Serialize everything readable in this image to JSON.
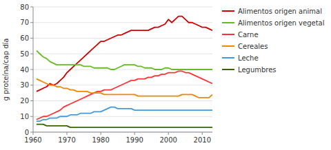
{
  "chart_data": {
    "type": "line",
    "x": [
      1961,
      1962,
      1963,
      1964,
      1965,
      1966,
      1967,
      1968,
      1969,
      1970,
      1971,
      1972,
      1973,
      1974,
      1975,
      1976,
      1977,
      1978,
      1979,
      1980,
      1981,
      1982,
      1983,
      1984,
      1985,
      1986,
      1987,
      1988,
      1989,
      1990,
      1991,
      1992,
      1993,
      1994,
      1995,
      1996,
      1997,
      1998,
      1999,
      2000,
      2001,
      2002,
      2003,
      2004,
      2005,
      2006,
      2007,
      2008,
      2009,
      2010,
      2011,
      2012,
      2013
    ],
    "series": [
      {
        "name": "Alimentos origen animal",
        "color": "#cc0000",
        "values": [
          26,
          27,
          28,
          29,
          31,
          30,
          31,
          33,
          35,
          38,
          40,
          42,
          44,
          46,
          48,
          50,
          52,
          54,
          56,
          58,
          58,
          59,
          60,
          61,
          62,
          62,
          63,
          64,
          65,
          65,
          65,
          65,
          65,
          65,
          66,
          67,
          67,
          68,
          69,
          72,
          70,
          72,
          74,
          74,
          72,
          70,
          70,
          69,
          68,
          67,
          67,
          66,
          65
        ]
      },
      {
        "name": "Alimentos origen vegetal",
        "color": "#66bb22",
        "values": [
          52,
          50,
          48,
          47,
          45,
          44,
          43,
          43,
          43,
          43,
          43,
          43,
          43,
          43,
          42,
          42,
          42,
          41,
          41,
          41,
          41,
          41,
          40,
          40,
          41,
          42,
          43,
          43,
          43,
          43,
          42,
          42,
          41,
          41,
          41,
          40,
          40,
          40,
          41,
          41,
          40,
          40,
          40,
          40,
          40,
          40,
          40,
          40,
          40,
          40,
          40,
          40,
          40
        ]
      },
      {
        "name": "Carne",
        "color": "#ff3333",
        "values": [
          8,
          9,
          10,
          10,
          11,
          12,
          13,
          14,
          16,
          17,
          18,
          19,
          20,
          21,
          22,
          23,
          24,
          25,
          26,
          26,
          27,
          27,
          27,
          28,
          29,
          30,
          31,
          32,
          33,
          33,
          34,
          34,
          34,
          35,
          35,
          36,
          36,
          37,
          37,
          38,
          38,
          38,
          39,
          39,
          38,
          38,
          37,
          36,
          35,
          34,
          33,
          32,
          31
        ]
      },
      {
        "name": "Cereales",
        "color": "#ee8800",
        "values": [
          34,
          33,
          32,
          31,
          30,
          30,
          29,
          29,
          28,
          28,
          27,
          27,
          26,
          26,
          26,
          26,
          25,
          25,
          25,
          25,
          24,
          24,
          24,
          24,
          24,
          24,
          24,
          24,
          24,
          24,
          23,
          23,
          23,
          23,
          23,
          23,
          23,
          23,
          23,
          23,
          23,
          23,
          23,
          24,
          24,
          24,
          24,
          23,
          22,
          22,
          22,
          22,
          24
        ]
      },
      {
        "name": "Leche",
        "color": "#4499dd",
        "values": [
          7,
          7,
          8,
          8,
          9,
          9,
          9,
          10,
          10,
          10,
          11,
          11,
          11,
          12,
          12,
          12,
          12,
          13,
          13,
          13,
          14,
          15,
          16,
          16,
          15,
          15,
          15,
          15,
          15,
          14,
          14,
          14,
          14,
          14,
          14,
          14,
          14,
          14,
          14,
          14,
          14,
          14,
          14,
          14,
          14,
          14,
          14,
          14,
          14,
          14,
          14,
          14,
          14
        ]
      },
      {
        "name": "Legumbres",
        "color": "#336600",
        "values": [
          5,
          5,
          5,
          4,
          4,
          4,
          4,
          4,
          4,
          4,
          3,
          3,
          3,
          3,
          3,
          3,
          3,
          3,
          3,
          3,
          3,
          3,
          3,
          3,
          3,
          3,
          3,
          3,
          3,
          3,
          3,
          3,
          3,
          3,
          3,
          3,
          3,
          3,
          3,
          3,
          3,
          3,
          3,
          3,
          3,
          3,
          3,
          3,
          3,
          3,
          3,
          3,
          3
        ]
      }
    ],
    "ylabel": "g proteína/cap día",
    "xlim": [
      1960,
      2013
    ],
    "ylim": [
      0,
      80
    ],
    "xticks": [
      1960,
      1970,
      1980,
      1990,
      2000,
      2010
    ],
    "yticks": [
      0,
      10,
      20,
      30,
      40,
      50,
      60,
      70,
      80
    ],
    "grid": true,
    "legend": "right"
  }
}
